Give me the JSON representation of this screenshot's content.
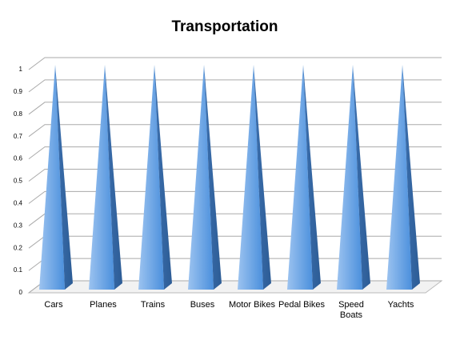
{
  "chart_data": {
    "type": "pyramid",
    "title": "Transportation",
    "categories": [
      "Cars",
      "Planes",
      "Trains",
      "Buses",
      "Motor Bikes",
      "Pedal Bikes",
      "Speed Boats",
      "Yachts"
    ],
    "values": [
      1,
      1,
      1,
      1,
      1,
      1,
      1,
      1
    ],
    "color": "#4a8fdc",
    "ylim": [
      0,
      1
    ],
    "yticks": [
      0,
      0.1,
      0.2,
      0.3,
      0.4,
      0.5,
      0.6,
      0.7,
      0.8,
      0.9,
      1
    ],
    "grid": true
  }
}
